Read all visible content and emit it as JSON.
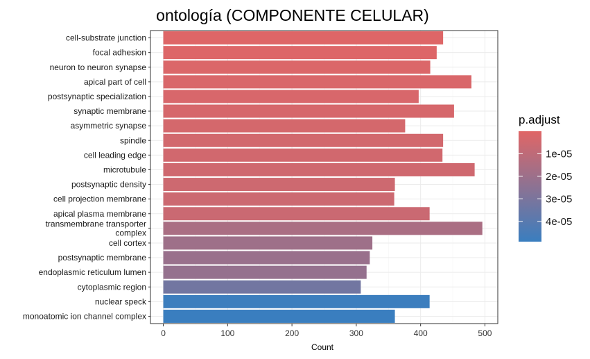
{
  "chart_data": {
    "type": "bar",
    "orientation": "horizontal",
    "title": "ontología (COMPONENTE CELULAR)",
    "xlabel": "Count",
    "ylabel": "",
    "xlim": [
      -20,
      520
    ],
    "xticks": [
      0,
      100,
      200,
      300,
      400,
      500
    ],
    "grid": true,
    "categories": [
      "cell-substrate junction",
      "focal adhesion",
      "neuron to neuron synapse",
      "apical part of cell",
      "postsynaptic specialization",
      "synaptic membrane",
      "asymmetric synapse",
      "spindle",
      "cell leading edge",
      "microtubule",
      "postsynaptic density",
      "cell projection membrane",
      "apical plasma membrane",
      "transmembrane transporter complex",
      "cell cortex",
      "postsynaptic membrane",
      "endoplasmic reticulum lumen",
      "cytoplasmic region",
      "nuclear speck",
      "monoatomic ion channel complex"
    ],
    "category_label_lines": [
      [
        "cell-substrate junction"
      ],
      [
        "focal adhesion"
      ],
      [
        "neuron to neuron synapse"
      ],
      [
        "apical part of cell"
      ],
      [
        "postsynaptic specialization"
      ],
      [
        "synaptic membrane"
      ],
      [
        "asymmetric synapse"
      ],
      [
        "spindle"
      ],
      [
        "cell leading edge"
      ],
      [
        "microtubule"
      ],
      [
        "postsynaptic density"
      ],
      [
        "cell projection membrane"
      ],
      [
        "apical plasma membrane"
      ],
      [
        "transmembrane transporter",
        "complex"
      ],
      [
        "cell cortex"
      ],
      [
        "postsynaptic membrane"
      ],
      [
        "endoplasmic reticulum lumen"
      ],
      [
        "cytoplasmic region"
      ],
      [
        "nuclear speck"
      ],
      [
        "monoatomic ion channel complex"
      ]
    ],
    "values": [
      435,
      425,
      415,
      479,
      397,
      452,
      376,
      435,
      434,
      484,
      360,
      359,
      414,
      496,
      325,
      321,
      316,
      307,
      414,
      360
    ],
    "p_adjust": [
      5e-07,
      1e-06,
      1.5e-06,
      2e-06,
      2.5e-06,
      3e-06,
      3.5e-06,
      4e-06,
      4.5e-06,
      5e-06,
      5.5e-06,
      6e-06,
      6.5e-06,
      1.6e-05,
      1.95e-05,
      2.1e-05,
      2.2e-05,
      3.25e-05,
      4.85e-05,
      4.9e-05
    ],
    "legend": {
      "title": "p.adjust",
      "position": "right",
      "range": [
        0,
        4.9e-05
      ],
      "ticks": [
        1e-05,
        2e-05,
        3e-05,
        4e-05
      ],
      "tick_labels": [
        "1e-05",
        "2e-05",
        "3e-05",
        "4e-05"
      ],
      "color_low": "#E06666",
      "color_high": "#3A7EBF"
    },
    "panel_background": "#ffffff",
    "grid_color": "#ebebeb"
  }
}
